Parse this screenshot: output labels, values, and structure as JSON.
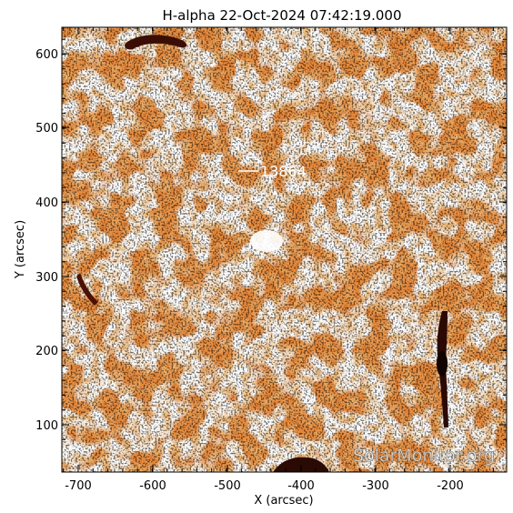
{
  "title": "H-alpha 22-Oct-2024 07:42:19.000",
  "axes": {
    "xlabel": "X (arcsec)",
    "ylabel": "Y (arcsec)",
    "x_ticks": [
      "-700",
      "-600",
      "-500",
      "-400",
      "-300",
      "-200"
    ],
    "y_ticks": [
      "100",
      "200",
      "300",
      "400",
      "500",
      "600"
    ]
  },
  "region_label": "13864",
  "watermark": "SolarMonitor.org",
  "colors": {
    "map_base": "#e98a3c",
    "map_dark": "#7a1e08",
    "map_bright": "#ffe2b8"
  }
}
